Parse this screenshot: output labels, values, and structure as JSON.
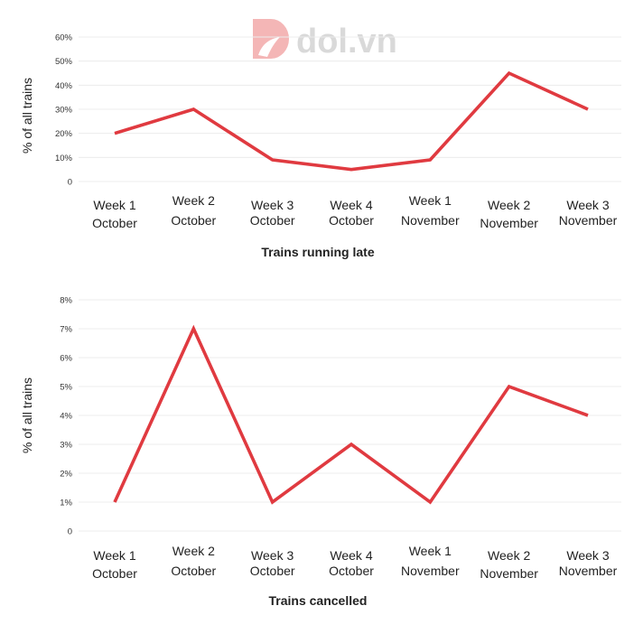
{
  "watermark": {
    "text": "dol.vn",
    "icon": "dol-logo-icon",
    "colors": {
      "logo": "#f4b6b6",
      "text": "#d6d6d6"
    }
  },
  "colors": {
    "line": "#e03a40",
    "grid": "#ececec"
  },
  "chart_data": [
    {
      "type": "line",
      "title": "Trains running late",
      "ylabel": "% of all trains",
      "ylim": [
        0,
        60
      ],
      "yticks": [
        0,
        10,
        20,
        30,
        40,
        50,
        60
      ],
      "ytick_labels": [
        "0",
        "10%",
        "20%",
        "30%",
        "40%",
        "50%",
        "60%"
      ],
      "categories": [
        [
          "Week 1",
          "October"
        ],
        [
          "Week 2",
          "October"
        ],
        [
          "Week 3",
          "October"
        ],
        [
          "Week 4",
          "October"
        ],
        [
          "Week 1",
          "November"
        ],
        [
          "Week 2",
          "November"
        ],
        [
          "Week 3",
          "November"
        ]
      ],
      "values": [
        20,
        30,
        9,
        5,
        9,
        45,
        30
      ],
      "grid": true
    },
    {
      "type": "line",
      "title": "Trains cancelled",
      "ylabel": "% of all trains",
      "ylim": [
        0,
        8
      ],
      "yticks": [
        0,
        1,
        2,
        3,
        4,
        5,
        6,
        7,
        8
      ],
      "ytick_labels": [
        "0",
        "1%",
        "2%",
        "3%",
        "4%",
        "5%",
        "6%",
        "7%",
        "8%"
      ],
      "categories": [
        [
          "Week 1",
          "October"
        ],
        [
          "Week 2",
          "October"
        ],
        [
          "Week 3",
          "October"
        ],
        [
          "Week 4",
          "October"
        ],
        [
          "Week 1",
          "November"
        ],
        [
          "Week 2",
          "November"
        ],
        [
          "Week 3",
          "November"
        ]
      ],
      "values": [
        1,
        7,
        1,
        3,
        1,
        5,
        4
      ],
      "grid": true
    }
  ]
}
